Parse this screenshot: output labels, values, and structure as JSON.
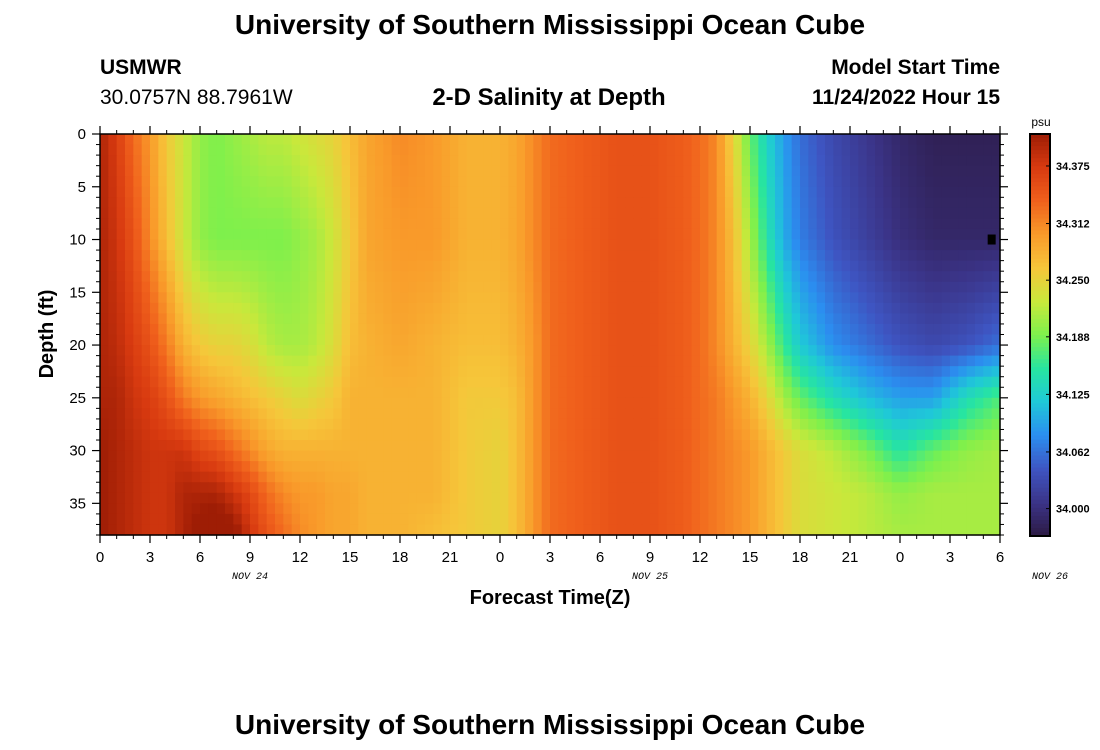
{
  "page": {
    "title": "University of Southern Mississippi Ocean Cube",
    "title_repeat": "University of Southern Mississippi Ocean Cube",
    "station": "USMWR",
    "coords": "30.0757N  88.7961W",
    "subtitle": "2-D Salinity at Depth",
    "model_start_label": "Model Start Time",
    "model_start_value": "11/24/2022 Hour 15"
  },
  "chart_data": {
    "type": "heatmap",
    "title": "2-D Salinity at Depth",
    "xlabel": "Forecast Time(Z)",
    "ylabel": "Depth (ft)",
    "x_tick_labels": [
      "0",
      "3",
      "6",
      "9",
      "12",
      "15",
      "18",
      "21",
      "0",
      "3",
      "6",
      "9",
      "12",
      "15",
      "18",
      "21",
      "0",
      "3",
      "6"
    ],
    "date_labels": [
      {
        "text": "NOV 24",
        "at_hour": 9
      },
      {
        "text": "NOV 25",
        "at_hour": 33
      },
      {
        "text": "NOV 26",
        "at_hour": 57
      }
    ],
    "xlim": [
      0,
      54
    ],
    "ylim": [
      38,
      0
    ],
    "y_ticks": [
      0,
      5,
      10,
      15,
      20,
      25,
      30,
      35
    ],
    "colorbar": {
      "unit": "psu",
      "ticks": [
        "34.375",
        "34.312",
        "34.250",
        "34.188",
        "34.125",
        "34.062",
        "34.000"
      ],
      "range": [
        33.97,
        34.41
      ],
      "colors": [
        "#2c1a44",
        "#3b3488",
        "#3e55c2",
        "#2b8ef0",
        "#1fc8d8",
        "#27e5a0",
        "#7ef04c",
        "#c9e83b",
        "#f6c63a",
        "#f99a2a",
        "#f0601c",
        "#d83a10",
        "#9e1d05"
      ]
    },
    "marker": {
      "hour": 53.5,
      "depth": 10
    },
    "rows_depth": [
      0,
      10,
      20,
      25,
      30,
      34,
      38
    ],
    "columns": [
      {
        "hour": 0,
        "values": [
          34.4,
          34.4,
          34.4,
          34.4,
          34.41,
          34.41,
          34.41
        ]
      },
      {
        "hour": 1,
        "values": [
          34.37,
          34.38,
          34.39,
          34.4,
          34.4,
          34.4,
          34.4
        ]
      },
      {
        "hour": 2,
        "values": [
          34.33,
          34.35,
          34.37,
          34.38,
          34.39,
          34.39,
          34.39
        ]
      },
      {
        "hour": 3,
        "values": [
          34.3,
          34.31,
          34.35,
          34.37,
          34.38,
          34.38,
          34.38
        ]
      },
      {
        "hour": 4,
        "values": [
          34.26,
          34.27,
          34.32,
          34.35,
          34.38,
          34.38,
          34.38
        ]
      },
      {
        "hour": 5,
        "values": [
          34.23,
          34.23,
          34.28,
          34.32,
          34.38,
          34.4,
          34.4
        ]
      },
      {
        "hour": 6,
        "values": [
          34.2,
          34.2,
          34.26,
          34.3,
          34.36,
          34.4,
          34.42
        ]
      },
      {
        "hour": 7,
        "values": [
          34.19,
          34.19,
          34.25,
          34.29,
          34.35,
          34.4,
          34.43
        ]
      },
      {
        "hour": 8,
        "values": [
          34.2,
          34.19,
          34.25,
          34.28,
          34.33,
          34.38,
          34.42
        ]
      },
      {
        "hour": 9,
        "values": [
          34.21,
          34.19,
          34.24,
          34.27,
          34.31,
          34.36,
          34.38
        ]
      },
      {
        "hour": 10,
        "values": [
          34.22,
          34.19,
          34.22,
          34.26,
          34.29,
          34.33,
          34.35
        ]
      },
      {
        "hour": 11,
        "values": [
          34.22,
          34.19,
          34.21,
          34.25,
          34.28,
          34.31,
          34.33
        ]
      },
      {
        "hour": 12,
        "values": [
          34.23,
          34.2,
          34.21,
          34.24,
          34.28,
          34.3,
          34.31
        ]
      },
      {
        "hour": 13,
        "values": [
          34.24,
          34.21,
          34.22,
          34.25,
          34.28,
          34.3,
          34.3
        ]
      },
      {
        "hour": 14,
        "values": [
          34.25,
          34.23,
          34.24,
          34.26,
          34.28,
          34.29,
          34.29
        ]
      },
      {
        "hour": 15,
        "values": [
          34.27,
          34.26,
          34.27,
          34.28,
          34.28,
          34.29,
          34.29
        ]
      },
      {
        "hour": 16,
        "values": [
          34.29,
          34.29,
          34.28,
          34.28,
          34.28,
          34.28,
          34.28
        ]
      },
      {
        "hour": 18,
        "values": [
          34.31,
          34.3,
          34.29,
          34.28,
          34.28,
          34.28,
          34.28
        ]
      },
      {
        "hour": 20,
        "values": [
          34.3,
          34.3,
          34.28,
          34.28,
          34.28,
          34.28,
          34.27
        ]
      },
      {
        "hour": 22,
        "values": [
          34.28,
          34.28,
          34.27,
          34.26,
          34.26,
          34.26,
          34.26
        ]
      },
      {
        "hour": 24,
        "values": [
          34.28,
          34.28,
          34.27,
          34.26,
          34.25,
          34.25,
          34.25
        ]
      },
      {
        "hour": 25,
        "values": [
          34.29,
          34.29,
          34.28,
          34.27,
          34.27,
          34.27,
          34.27
        ]
      },
      {
        "hour": 26,
        "values": [
          34.31,
          34.31,
          34.3,
          34.3,
          34.3,
          34.3,
          34.3
        ]
      },
      {
        "hour": 27,
        "values": [
          34.33,
          34.33,
          34.33,
          34.33,
          34.33,
          34.33,
          34.33
        ]
      },
      {
        "hour": 29,
        "values": [
          34.34,
          34.34,
          34.34,
          34.34,
          34.34,
          34.34,
          34.34
        ]
      },
      {
        "hour": 31,
        "values": [
          34.35,
          34.35,
          34.35,
          34.35,
          34.35,
          34.35,
          34.35
        ]
      },
      {
        "hour": 33,
        "values": [
          34.35,
          34.35,
          34.35,
          34.35,
          34.35,
          34.35,
          34.35
        ]
      },
      {
        "hour": 35,
        "values": [
          34.34,
          34.34,
          34.34,
          34.34,
          34.34,
          34.34,
          34.34
        ]
      },
      {
        "hour": 36,
        "values": [
          34.33,
          34.33,
          34.33,
          34.33,
          34.33,
          34.33,
          34.33
        ]
      },
      {
        "hour": 37,
        "values": [
          34.31,
          34.31,
          34.31,
          34.32,
          34.32,
          34.32,
          34.32
        ]
      },
      {
        "hour": 38,
        "values": [
          34.25,
          34.27,
          34.28,
          34.3,
          34.31,
          34.31,
          34.31
        ]
      },
      {
        "hour": 39,
        "values": [
          34.18,
          34.21,
          34.25,
          34.28,
          34.3,
          34.3,
          34.3
        ]
      },
      {
        "hour": 40,
        "values": [
          34.13,
          34.15,
          34.21,
          34.25,
          34.28,
          34.28,
          34.28
        ]
      },
      {
        "hour": 41,
        "values": [
          34.09,
          34.1,
          34.16,
          34.21,
          34.26,
          34.26,
          34.26
        ]
      },
      {
        "hour": 42,
        "values": [
          34.06,
          34.07,
          34.12,
          34.18,
          34.24,
          34.24,
          34.24
        ]
      },
      {
        "hour": 44,
        "values": [
          34.03,
          34.04,
          34.08,
          34.14,
          34.22,
          34.23,
          34.23
        ]
      },
      {
        "hour": 46,
        "values": [
          34.01,
          34.02,
          34.06,
          34.11,
          34.19,
          34.22,
          34.22
        ]
      },
      {
        "hour": 48,
        "values": [
          33.99,
          34.0,
          34.04,
          34.09,
          34.15,
          34.2,
          34.21
        ]
      },
      {
        "hour": 50,
        "values": [
          33.98,
          33.99,
          34.03,
          34.09,
          34.18,
          34.21,
          34.21
        ]
      },
      {
        "hour": 52,
        "values": [
          33.98,
          33.99,
          34.04,
          34.14,
          34.2,
          34.21,
          34.21
        ]
      },
      {
        "hour": 54,
        "values": [
          33.98,
          33.99,
          34.06,
          34.17,
          34.21,
          34.21,
          34.21
        ]
      }
    ]
  }
}
